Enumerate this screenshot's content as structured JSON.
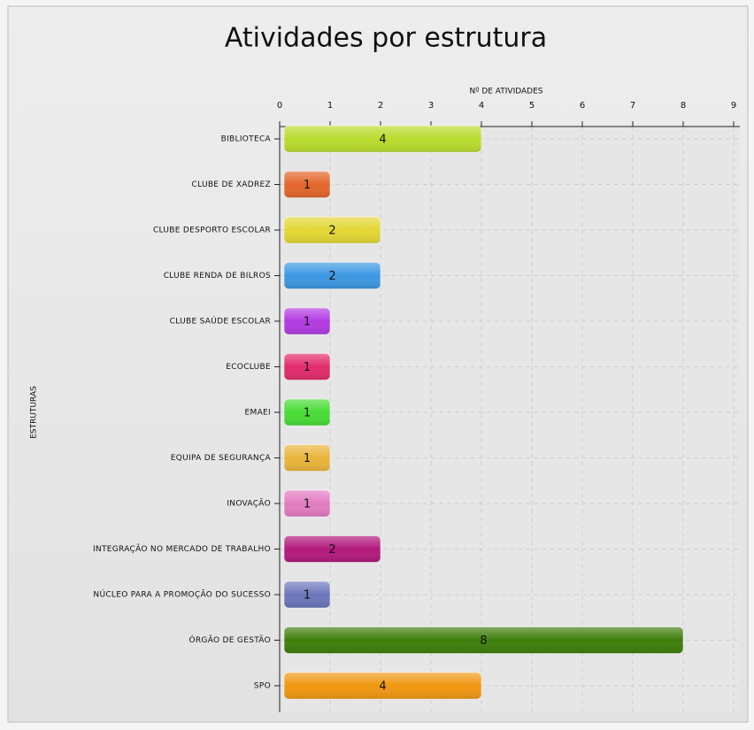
{
  "chart_data": {
    "type": "hbar",
    "title": "Atividades por estrutura",
    "x_label": "Nº DE ATIVIDADES",
    "y_label": "ESTRUTURAS",
    "categories": [
      "BIBLIOTECA",
      "CLUBE DE XADREZ",
      "CLUBE DESPORTO ESCOLAR",
      "CLUBE RENDA DE BILROS",
      "CLUBE SAÚDE ESCOLAR",
      "ECOCLUBE",
      "EMAEI",
      "EQUIPA DE SEGURANÇA",
      "INOVAÇÃO",
      "INTEGRAÇÃO NO MERCADO DE TRABALHO",
      "NÚCLEO PARA A PROMOÇÃO DO SUCESSO",
      "ÓRGÃO DE GESTÃO",
      "SPO"
    ],
    "values": [
      4,
      1,
      2,
      2,
      1,
      1,
      1,
      1,
      1,
      2,
      1,
      8,
      4
    ],
    "colors": [
      "#b9dc2e",
      "#e3662c",
      "#e3d634",
      "#3c98e2",
      "#b23ce2",
      "#e22c6c",
      "#48dc36",
      "#eab53c",
      "#e27cc2",
      "#b21a7c",
      "#6c76ba",
      "#3f7e0c",
      "#f09812"
    ],
    "xlim": [
      0,
      9
    ],
    "xticks": [
      0,
      1,
      2,
      3,
      4,
      5,
      6,
      7,
      8,
      9
    ],
    "grid": true
  }
}
